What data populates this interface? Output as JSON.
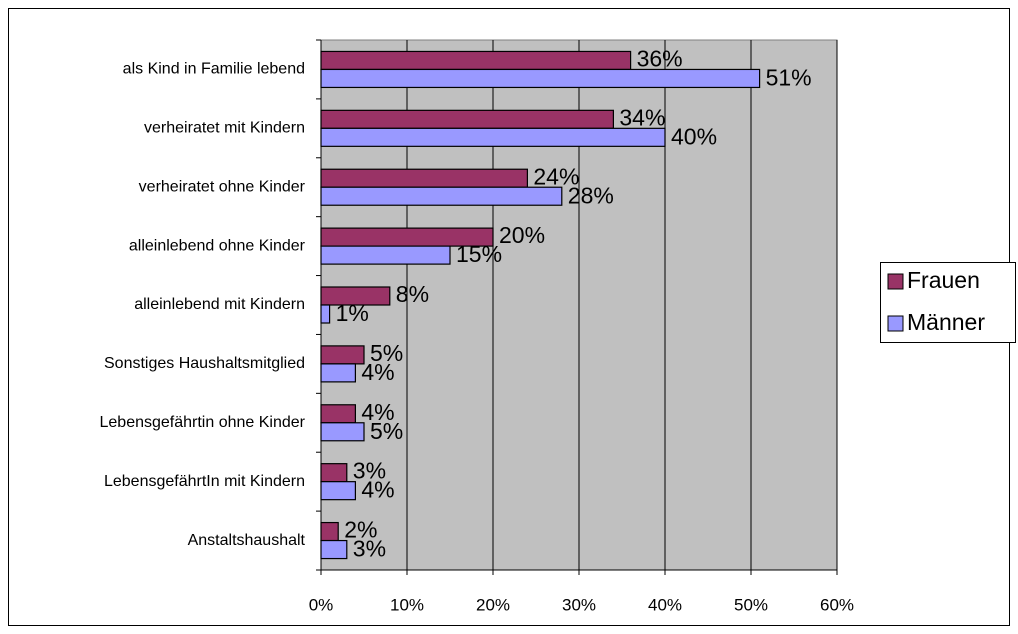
{
  "chart_data": {
    "type": "hbar",
    "categories": [
      "als Kind in Familie lebend",
      "verheiratet mit Kindern",
      "verheiratet ohne Kinder",
      "alleinlebend ohne Kinder",
      "alleinlebend mit Kindern",
      "Sonstiges Haushaltsmitglied",
      "Lebensgefährtin ohne Kinder",
      "LebensgefährtIn mit Kindern",
      "Anstaltshaushalt"
    ],
    "series": [
      {
        "name": "Frauen",
        "color": "#993366",
        "values": [
          36,
          34,
          24,
          20,
          8,
          5,
          4,
          3,
          2
        ],
        "value_labels": [
          "36%",
          "34%",
          "24%",
          "20%",
          "8%",
          "5%",
          "4%",
          "3%",
          "2%"
        ]
      },
      {
        "name": "Männer",
        "color": "#9999ff",
        "values": [
          51,
          40,
          28,
          15,
          1,
          4,
          5,
          4,
          3
        ],
        "value_labels": [
          "51%",
          "40%",
          "28%",
          "15%",
          "1%",
          "4%",
          "5%",
          "4%",
          "3%"
        ]
      }
    ],
    "xlim": [
      0,
      60
    ],
    "xticks": [
      {
        "value": 0,
        "label": "0%"
      },
      {
        "value": 10,
        "label": "10%"
      },
      {
        "value": 20,
        "label": "20%"
      },
      {
        "value": 30,
        "label": "30%"
      },
      {
        "value": 40,
        "label": "40%"
      },
      {
        "value": 50,
        "label": "50%"
      },
      {
        "value": 60,
        "label": "60%"
      }
    ],
    "grid": true,
    "legend": "right",
    "plot_background": "#c0c0c0"
  }
}
